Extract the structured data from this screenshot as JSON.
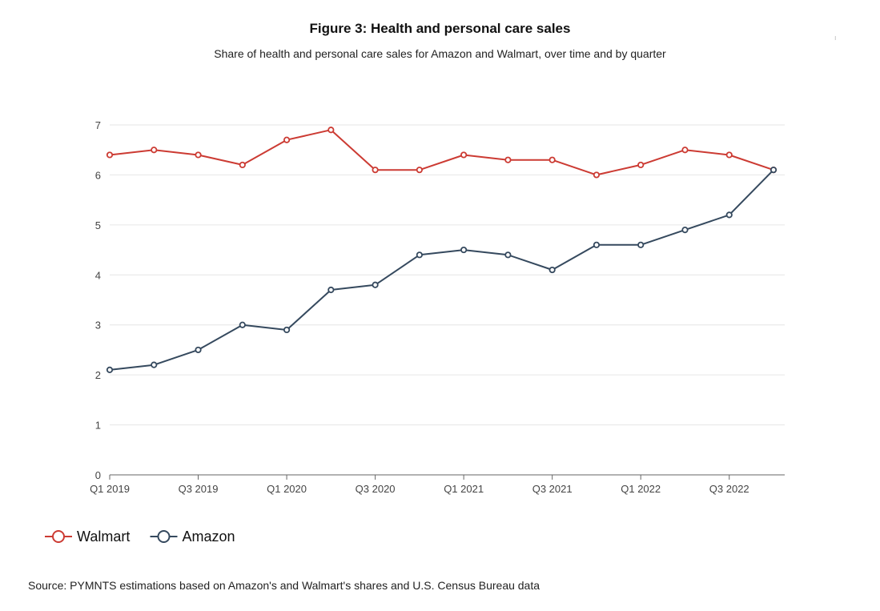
{
  "colors": {
    "walmart": "#cc3b33",
    "amazon": "#35495e",
    "grid": "#e6e6e6",
    "axis": "#666666"
  },
  "header": {
    "title": "Figure 3: Health and personal care sales",
    "subtitle": "Share of health and personal care sales for Amazon and Walmart, over time and by quarter"
  },
  "decor": {
    "tiny_mark": "ı"
  },
  "footer": {
    "source": "Source: PYMNTS estimations based on Amazon's and Walmart's shares and U.S. Census Bureau data"
  },
  "chart_data": {
    "type": "line",
    "title": "Figure 3: Health and personal care sales",
    "subtitle": "Share of health and personal care sales for Amazon and Walmart, over time and by quarter",
    "xlabel": "",
    "ylabel": "",
    "x": [
      "Q1 2019",
      "Q2 2019",
      "Q3 2019",
      "Q4 2019",
      "Q1 2020",
      "Q2 2020",
      "Q3 2020",
      "Q4 2020",
      "Q1 2021",
      "Q2 2021",
      "Q3 2021",
      "Q4 2021",
      "Q1 2022",
      "Q2 2022",
      "Q3 2022",
      "Q4 2022"
    ],
    "x_tick_labels": [
      "Q1 2019",
      "Q3 2019",
      "Q1 2020",
      "Q3 2020",
      "Q1 2021",
      "Q3 2021",
      "Q1 2022",
      "Q3 2022"
    ],
    "y_ticks": [
      0,
      1,
      2,
      3,
      4,
      5,
      6,
      7
    ],
    "ylim": [
      0,
      7
    ],
    "grid": true,
    "legend_position": "bottom-left",
    "series": [
      {
        "name": "Walmart",
        "color": "#cc3b33",
        "values": [
          6.4,
          6.5,
          6.4,
          6.2,
          6.7,
          6.9,
          6.1,
          6.1,
          6.4,
          6.3,
          6.3,
          6.0,
          6.2,
          6.5,
          6.4,
          6.1
        ]
      },
      {
        "name": "Amazon",
        "color": "#35495e",
        "values": [
          2.1,
          2.2,
          2.5,
          3.0,
          2.9,
          3.7,
          3.8,
          4.4,
          4.5,
          4.4,
          4.1,
          4.6,
          4.6,
          4.9,
          5.2,
          6.1
        ]
      }
    ]
  }
}
